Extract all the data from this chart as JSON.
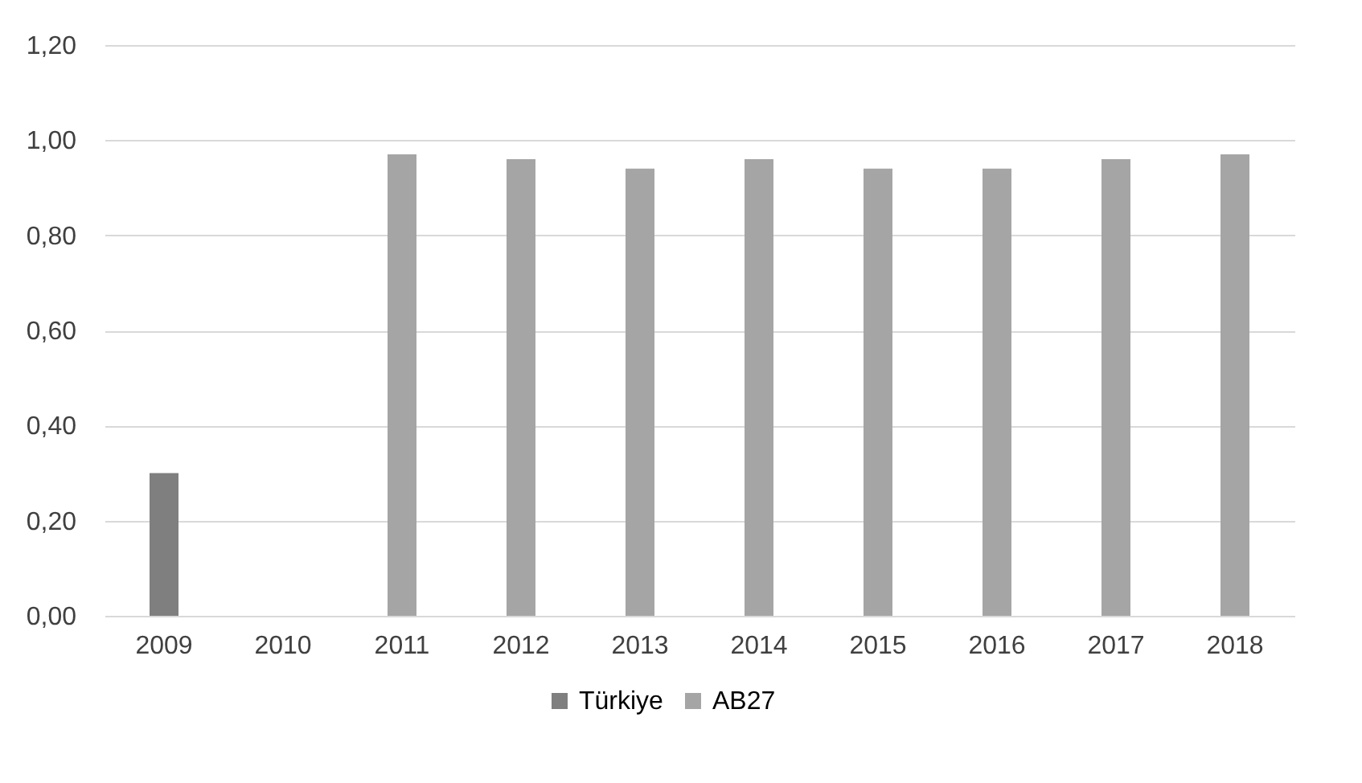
{
  "chart_data": {
    "type": "bar",
    "stacked": true,
    "categories": [
      "2009",
      "2010",
      "2011",
      "2012",
      "2013",
      "2014",
      "2015",
      "2016",
      "2017",
      "2018"
    ],
    "series": [
      {
        "name": "Türkiye",
        "color": "#7f7f7f",
        "values": [
          0.3,
          null,
          null,
          null,
          null,
          null,
          null,
          null,
          null,
          null
        ]
      },
      {
        "name": "AB27",
        "color": "#a5a5a5",
        "values": [
          null,
          null,
          0.97,
          0.96,
          0.94,
          0.96,
          0.94,
          0.94,
          0.96,
          0.97
        ]
      }
    ],
    "ylim": [
      0,
      1.2
    ],
    "yticks": [
      {
        "value": 0,
        "label": "0,00"
      },
      {
        "value": 0.2,
        "label": "0,20"
      },
      {
        "value": 0.4,
        "label": "0,40"
      },
      {
        "value": 0.6,
        "label": "0,60"
      },
      {
        "value": 0.8,
        "label": "0,80"
      },
      {
        "value": 1.0,
        "label": "1,00"
      },
      {
        "value": 1.2,
        "label": "1,20"
      }
    ],
    "grid": "y",
    "legend": "bottom"
  }
}
